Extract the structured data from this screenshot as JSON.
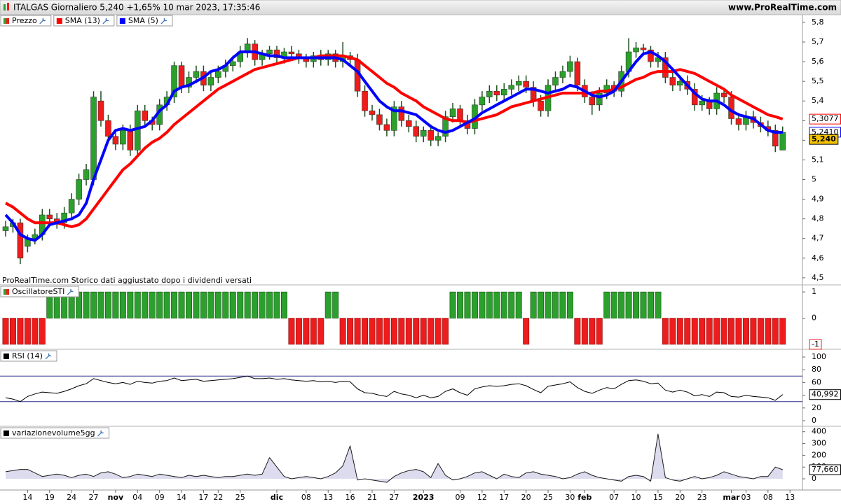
{
  "header": {
    "title": "ITALGAS Giornaliero 5,240 +1,65% 10 mar 2023, 17:35:46",
    "site": "www.ProRealTime.com"
  },
  "chart_data": [
    {
      "type": "candlestick",
      "name": "Prezzo",
      "note": "ProRealTime.com Storico dati aggiustato dopo i dividendi versati",
      "up_color": "#2ca02c",
      "down_color": "#ee1c1c",
      "xlim": [
        -0.765,
        108.7
      ],
      "xticks": [
        {
          "value": 3,
          "label": "14"
        },
        {
          "value": 6,
          "label": "19"
        },
        {
          "value": 9,
          "label": "24"
        },
        {
          "value": 12,
          "label": "27"
        },
        {
          "value": 15,
          "label": "nov",
          "bold": true
        },
        {
          "value": 18,
          "label": "04"
        },
        {
          "value": 21,
          "label": "09"
        },
        {
          "value": 24,
          "label": "14"
        },
        {
          "value": 27,
          "label": "17"
        },
        {
          "value": 29,
          "label": "22"
        },
        {
          "value": 32,
          "label": "25"
        },
        {
          "value": 37,
          "label": "dic",
          "bold": true
        },
        {
          "value": 41,
          "label": "08"
        },
        {
          "value": 44,
          "label": "13"
        },
        {
          "value": 47,
          "label": "16"
        },
        {
          "value": 50,
          "label": "21"
        },
        {
          "value": 53,
          "label": "27"
        },
        {
          "value": 57,
          "label": "2023",
          "bold": true
        },
        {
          "value": 62,
          "label": "09"
        },
        {
          "value": 65,
          "label": "12"
        },
        {
          "value": 68,
          "label": "17"
        },
        {
          "value": 71,
          "label": "20"
        },
        {
          "value": 74,
          "label": "25"
        },
        {
          "value": 77,
          "label": "30"
        },
        {
          "value": 79,
          "label": "feb",
          "bold": true
        },
        {
          "value": 83,
          "label": "07"
        },
        {
          "value": 86,
          "label": "10"
        },
        {
          "value": 89,
          "label": "15"
        },
        {
          "value": 92,
          "label": "20"
        },
        {
          "value": 95,
          "label": "23"
        },
        {
          "value": 99,
          "label": "mar",
          "bold": true
        },
        {
          "value": 101,
          "label": "03"
        },
        {
          "value": 104,
          "label": "08"
        },
        {
          "value": 107,
          "label": "13"
        }
      ],
      "ylim": [
        4.471,
        5.839
      ],
      "yticks": [
        {
          "value": 5.8,
          "label": "5,8"
        },
        {
          "value": 5.7,
          "label": "5,7"
        },
        {
          "value": 5.6,
          "label": "5,6"
        },
        {
          "value": 5.5,
          "label": "5,5"
        },
        {
          "value": 5.4,
          "label": "5,4"
        },
        {
          "value": 5.3,
          "label": "5,3"
        },
        {
          "value": 5.2,
          "label": "5,2"
        },
        {
          "value": 5.1,
          "label": "5,1"
        },
        5,
        {
          "value": 4.9,
          "label": "4,9"
        },
        {
          "value": 4.8,
          "label": "4,8"
        },
        {
          "value": 4.7,
          "label": "4,7"
        },
        {
          "value": 4.6,
          "label": "4,6"
        },
        {
          "value": 4.5,
          "label": "4,5"
        }
      ],
      "open": [
        4.74,
        4.76,
        4.78,
        4.66,
        4.7,
        4.72,
        4.82,
        4.8,
        4.78,
        4.83,
        4.9,
        5.0,
        5.0,
        5.4,
        5.3,
        5.22,
        5.18,
        5.25,
        5.15,
        5.35,
        5.3,
        5.28,
        5.38,
        5.42,
        5.58,
        5.47,
        5.52,
        5.55,
        5.48,
        5.52,
        5.55,
        5.58,
        5.6,
        5.65,
        5.69,
        5.61,
        5.64,
        5.66,
        5.62,
        5.65,
        5.64,
        5.62,
        5.6,
        5.63,
        5.61,
        5.64,
        5.6,
        5.63,
        5.61,
        5.45,
        5.35,
        5.33,
        5.28,
        5.25,
        5.37,
        5.3,
        5.27,
        5.22,
        5.25,
        5.2,
        5.22,
        5.32,
        5.36,
        5.3,
        5.26,
        5.38,
        5.42,
        5.45,
        5.43,
        5.46,
        5.48,
        5.5,
        5.47,
        5.4,
        5.35,
        5.48,
        5.52,
        5.55,
        5.6,
        5.48,
        5.42,
        5.38,
        5.44,
        5.48,
        5.45,
        5.55,
        5.65,
        5.67,
        5.66,
        5.6,
        5.62,
        5.52,
        5.48,
        5.5,
        5.46,
        5.38,
        5.4,
        5.36,
        5.44,
        5.42,
        5.31,
        5.28,
        5.32,
        5.29,
        5.27,
        5.25,
        5.15
      ],
      "high": [
        4.79,
        4.8,
        4.8,
        4.72,
        4.75,
        4.85,
        4.85,
        4.83,
        4.86,
        4.93,
        5.03,
        5.08,
        5.45,
        5.45,
        5.33,
        5.25,
        5.28,
        5.28,
        5.38,
        5.38,
        5.32,
        5.41,
        5.45,
        5.6,
        5.6,
        5.55,
        5.58,
        5.58,
        5.55,
        5.58,
        5.61,
        5.63,
        5.68,
        5.72,
        5.71,
        5.66,
        5.68,
        5.68,
        5.67,
        5.68,
        5.66,
        5.64,
        5.65,
        5.66,
        5.66,
        5.66,
        5.7,
        5.65,
        5.64,
        5.48,
        5.38,
        5.36,
        5.31,
        5.4,
        5.4,
        5.33,
        5.3,
        5.27,
        5.28,
        5.24,
        5.35,
        5.39,
        5.38,
        5.33,
        5.41,
        5.45,
        5.48,
        5.48,
        5.49,
        5.51,
        5.53,
        5.53,
        5.5,
        5.43,
        5.51,
        5.55,
        5.58,
        5.63,
        5.62,
        5.51,
        5.45,
        5.47,
        5.51,
        5.5,
        5.58,
        5.72,
        5.7,
        5.69,
        5.68,
        5.65,
        5.65,
        5.55,
        5.53,
        5.53,
        5.49,
        5.43,
        5.42,
        5.47,
        5.46,
        5.45,
        5.34,
        5.35,
        5.35,
        5.32,
        5.3,
        5.28,
        5.27
      ],
      "low": [
        4.71,
        4.73,
        4.57,
        4.63,
        4.67,
        4.69,
        4.77,
        4.75,
        4.75,
        4.8,
        4.87,
        4.97,
        4.97,
        5.27,
        5.19,
        5.15,
        5.15,
        5.12,
        5.12,
        5.27,
        5.25,
        5.25,
        5.35,
        5.39,
        5.44,
        5.44,
        5.49,
        5.45,
        5.45,
        5.49,
        5.52,
        5.55,
        5.57,
        5.62,
        5.58,
        5.58,
        5.61,
        5.59,
        5.59,
        5.61,
        5.59,
        5.57,
        5.57,
        5.58,
        5.58,
        5.57,
        5.57,
        5.58,
        5.42,
        5.32,
        5.3,
        5.25,
        5.22,
        5.22,
        5.27,
        5.24,
        5.19,
        5.19,
        5.17,
        5.17,
        5.19,
        5.29,
        5.27,
        5.23,
        5.23,
        5.35,
        5.39,
        5.4,
        5.4,
        5.43,
        5.45,
        5.44,
        5.37,
        5.32,
        5.32,
        5.45,
        5.49,
        5.52,
        5.45,
        5.39,
        5.33,
        5.35,
        5.41,
        5.42,
        5.42,
        5.52,
        5.62,
        5.63,
        5.57,
        5.57,
        5.49,
        5.45,
        5.45,
        5.43,
        5.35,
        5.35,
        5.33,
        5.33,
        5.39,
        5.28,
        5.25,
        5.25,
        5.26,
        5.24,
        5.22,
        5.14,
        5.15
      ],
      "close": [
        4.76,
        4.78,
        4.6,
        4.7,
        4.72,
        4.82,
        4.8,
        4.78,
        4.83,
        4.9,
        5.0,
        5.05,
        5.42,
        5.3,
        5.22,
        5.18,
        5.25,
        5.15,
        5.35,
        5.3,
        5.28,
        5.38,
        5.42,
        5.58,
        5.47,
        5.52,
        5.55,
        5.48,
        5.52,
        5.55,
        5.58,
        5.6,
        5.65,
        5.69,
        5.61,
        5.64,
        5.66,
        5.62,
        5.65,
        5.64,
        5.62,
        5.6,
        5.63,
        5.61,
        5.64,
        5.6,
        5.63,
        5.61,
        5.45,
        5.35,
        5.33,
        5.28,
        5.25,
        5.37,
        5.3,
        5.27,
        5.22,
        5.25,
        5.2,
        5.22,
        5.32,
        5.36,
        5.3,
        5.26,
        5.38,
        5.42,
        5.45,
        5.43,
        5.46,
        5.48,
        5.5,
        5.47,
        5.4,
        5.35,
        5.48,
        5.52,
        5.55,
        5.6,
        5.48,
        5.42,
        5.38,
        5.44,
        5.48,
        5.45,
        5.55,
        5.65,
        5.67,
        5.66,
        5.6,
        5.62,
        5.52,
        5.48,
        5.5,
        5.46,
        5.38,
        5.4,
        5.36,
        5.44,
        5.42,
        5.31,
        5.28,
        5.32,
        5.29,
        5.27,
        5.25,
        5.17,
        5.24
      ],
      "close_label": "5,240",
      "series": [
        {
          "name": "SMA (13)",
          "color": "#ff0000",
          "last_value_label": "5,3077",
          "values": [
            4.88,
            4.86,
            4.83,
            4.8,
            4.78,
            4.78,
            4.78,
            4.78,
            4.77,
            4.76,
            4.77,
            4.8,
            4.85,
            4.9,
            4.95,
            5.0,
            5.05,
            5.08,
            5.12,
            5.16,
            5.19,
            5.21,
            5.24,
            5.28,
            5.31,
            5.34,
            5.37,
            5.4,
            5.43,
            5.46,
            5.48,
            5.5,
            5.52,
            5.54,
            5.56,
            5.57,
            5.58,
            5.59,
            5.6,
            5.61,
            5.62,
            5.62,
            5.62,
            5.63,
            5.63,
            5.63,
            5.63,
            5.62,
            5.61,
            5.58,
            5.55,
            5.52,
            5.49,
            5.47,
            5.44,
            5.42,
            5.4,
            5.37,
            5.35,
            5.33,
            5.31,
            5.3,
            5.3,
            5.29,
            5.3,
            5.31,
            5.32,
            5.33,
            5.35,
            5.37,
            5.38,
            5.39,
            5.4,
            5.41,
            5.42,
            5.43,
            5.44,
            5.44,
            5.44,
            5.44,
            5.44,
            5.45,
            5.45,
            5.46,
            5.47,
            5.49,
            5.51,
            5.52,
            5.54,
            5.55,
            5.55,
            5.55,
            5.56,
            5.55,
            5.54,
            5.52,
            5.5,
            5.48,
            5.46,
            5.43,
            5.41,
            5.39,
            5.37,
            5.35,
            5.33,
            5.32,
            5.3077
          ]
        },
        {
          "name": "SMA (5)",
          "color": "#0000ff",
          "last_value_label": "5,2410",
          "values": [
            4.82,
            4.78,
            4.72,
            4.7,
            4.69,
            4.72,
            4.77,
            4.78,
            4.79,
            4.8,
            4.82,
            4.88,
            5.0,
            5.1,
            5.2,
            5.25,
            5.26,
            5.25,
            5.26,
            5.27,
            5.3,
            5.35,
            5.38,
            5.45,
            5.47,
            5.48,
            5.5,
            5.52,
            5.55,
            5.56,
            5.58,
            5.62,
            5.65,
            5.65,
            5.65,
            5.64,
            5.63,
            5.63,
            5.62,
            5.62,
            5.62,
            5.62,
            5.62,
            5.62,
            5.62,
            5.62,
            5.61,
            5.58,
            5.55,
            5.5,
            5.45,
            5.4,
            5.37,
            5.35,
            5.35,
            5.34,
            5.33,
            5.3,
            5.27,
            5.25,
            5.24,
            5.25,
            5.27,
            5.29,
            5.31,
            5.34,
            5.36,
            5.38,
            5.4,
            5.42,
            5.44,
            5.46,
            5.46,
            5.45,
            5.44,
            5.45,
            5.46,
            5.48,
            5.47,
            5.45,
            5.43,
            5.42,
            5.43,
            5.45,
            5.5,
            5.55,
            5.6,
            5.64,
            5.65,
            5.63,
            5.6,
            5.56,
            5.52,
            5.48,
            5.44,
            5.41,
            5.4,
            5.4,
            5.38,
            5.35,
            5.33,
            5.32,
            5.31,
            5.28,
            5.25,
            5.24,
            5.241
          ]
        }
      ]
    },
    {
      "type": "bar",
      "name": "OscillatoreSTI",
      "pos_color": "#2ca02c",
      "neg_color": "#ee1c1c",
      "ylim": [
        -1.162,
        1.243
      ],
      "yticks": [
        1,
        0
      ],
      "values": [
        -1,
        -1,
        -1,
        -1,
        -1,
        -1,
        1,
        1,
        1,
        1,
        1,
        1,
        1,
        1,
        1,
        1,
        1,
        1,
        1,
        1,
        1,
        1,
        1,
        1,
        1,
        1,
        1,
        1,
        1,
        1,
        1,
        1,
        1,
        1,
        1,
        1,
        1,
        1,
        1,
        -1,
        -1,
        -1,
        -1,
        -1,
        1,
        1,
        -1,
        -1,
        -1,
        -1,
        -1,
        -1,
        -1,
        -1,
        -1,
        -1,
        -1,
        -1,
        -1,
        -1,
        -1,
        1,
        1,
        1,
        1,
        1,
        1,
        1,
        1,
        1,
        1,
        -1,
        1,
        1,
        1,
        1,
        1,
        1,
        -1,
        -1,
        -1,
        -1,
        1,
        1,
        1,
        1,
        1,
        1,
        1,
        1,
        -1,
        -1,
        -1,
        -1,
        -1,
        -1,
        -1,
        -1,
        -1,
        -1,
        -1,
        -1,
        -1,
        -1,
        -1,
        -1,
        -1
      ]
    },
    {
      "type": "line",
      "name": "RSI (14)",
      "color": "#000000",
      "level_color": "#2b2b8c",
      "levels": [
        70,
        30
      ],
      "ylim": [
        -6.6,
        111
      ],
      "yticks": [
        100,
        80,
        60,
        40,
        20,
        0
      ],
      "last_value_label": "40,992",
      "values": [
        36,
        34,
        30,
        38,
        42,
        45,
        44,
        43,
        46,
        50,
        55,
        58,
        66,
        63,
        60,
        58,
        60,
        57,
        62,
        60,
        59,
        62,
        63,
        67,
        63,
        64,
        65,
        62,
        63,
        64,
        65,
        66,
        68,
        70,
        66,
        66,
        67,
        65,
        66,
        64,
        63,
        62,
        63,
        61,
        62,
        60,
        62,
        61,
        50,
        44,
        43,
        40,
        38,
        46,
        42,
        40,
        36,
        40,
        36,
        38,
        46,
        50,
        44,
        40,
        50,
        53,
        55,
        54,
        55,
        57,
        58,
        55,
        49,
        44,
        54,
        56,
        58,
        61,
        52,
        46,
        43,
        48,
        52,
        50,
        57,
        63,
        64,
        62,
        58,
        59,
        48,
        45,
        48,
        45,
        39,
        41,
        38,
        45,
        44,
        38,
        37,
        40,
        38,
        37,
        36,
        32,
        40.992
      ]
    },
    {
      "type": "area",
      "name": "variazionevolume5gg",
      "color": "#1a1a1a",
      "fill": "#dcdcee",
      "ylim": [
        -95,
        440
      ],
      "yticks": [
        400,
        300,
        200,
        100,
        0
      ],
      "last_value_label": "77,660",
      "values": [
        60,
        70,
        80,
        80,
        50,
        20,
        30,
        40,
        30,
        10,
        30,
        40,
        20,
        50,
        60,
        40,
        10,
        20,
        40,
        30,
        20,
        40,
        30,
        20,
        10,
        30,
        20,
        30,
        20,
        10,
        20,
        20,
        30,
        40,
        30,
        40,
        180,
        100,
        20,
        0,
        10,
        20,
        10,
        0,
        20,
        50,
        110,
        280,
        -10,
        0,
        -10,
        -20,
        -30,
        20,
        50,
        70,
        80,
        60,
        10,
        130,
        30,
        -10,
        0,
        20,
        50,
        60,
        30,
        0,
        40,
        20,
        10,
        50,
        60,
        40,
        30,
        20,
        0,
        10,
        40,
        60,
        30,
        10,
        0,
        -10,
        -20,
        20,
        30,
        20,
        -20,
        380,
        10,
        -10,
        -20,
        0,
        20,
        0,
        10,
        30,
        60,
        40,
        20,
        10,
        0,
        20,
        20,
        100,
        77.66
      ]
    }
  ]
}
